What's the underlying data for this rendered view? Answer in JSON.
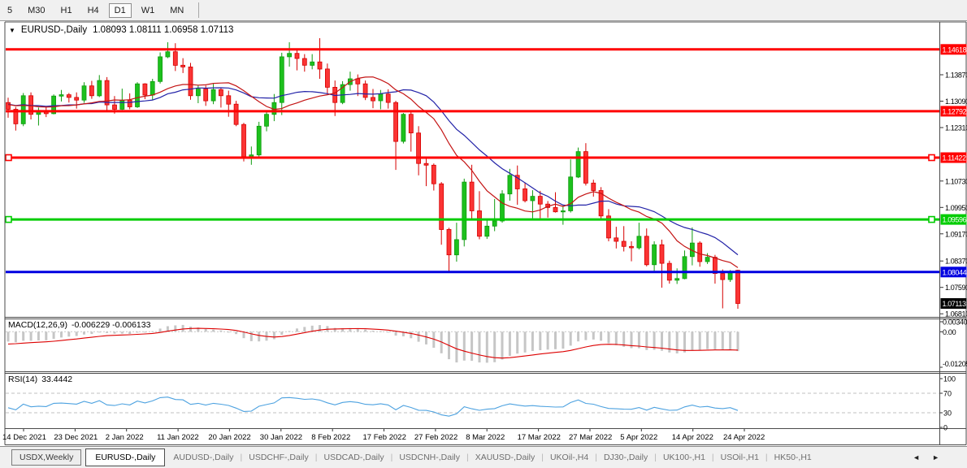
{
  "toolbar": {
    "items": [
      {
        "label": "5",
        "active": false
      },
      {
        "label": "M30",
        "active": false
      },
      {
        "label": "H1",
        "active": false
      },
      {
        "label": "H4",
        "active": false
      },
      {
        "label": "D1",
        "active": true
      },
      {
        "label": "W1",
        "active": false
      },
      {
        "label": "MN",
        "active": false
      }
    ]
  },
  "chart_header": {
    "collapse_icon": "▼",
    "symbol_label": "EURUSD-,Daily",
    "ohlc_values": "1.08093 1.08111 1.06958 1.07113"
  },
  "chart_data": {
    "type": "candlestick",
    "title": "EURUSD-,Daily",
    "x_labels": [
      "14 Dec 2021",
      "23 Dec 2021",
      "2 Jan 2022",
      "11 Jan 2022",
      "20 Jan 2022",
      "30 Jan 2022",
      "8 Feb 2022",
      "17 Feb 2022",
      "27 Feb 2022",
      "8 Mar 2022",
      "17 Mar 2022",
      "27 Mar 2022",
      "5 Apr 2022",
      "14 Apr 2022",
      "24 Apr 2022"
    ],
    "y_axis_labels": [
      1.1387,
      1.1309,
      1.1231,
      1.1073,
      1.0995,
      1.0917,
      1.0837,
      1.0759,
      1.0681
    ],
    "horizontal_lines": [
      {
        "price": 1.14618,
        "color": "#ff0000",
        "handles": false
      },
      {
        "price": 1.12792,
        "color": "#ff0000",
        "handles": false
      },
      {
        "price": 1.11422,
        "color": "#ff0000",
        "handles": true
      },
      {
        "price": 1.09596,
        "color": "#00cc00",
        "handles": true
      },
      {
        "price": 1.08044,
        "color": "#0000e0",
        "handles": false
      }
    ],
    "current_price": {
      "value": 1.07113,
      "badge_color": "#000000"
    },
    "moving_averages": [
      {
        "name": "fast",
        "period": 13,
        "color": "#c41414"
      },
      {
        "name": "slow",
        "period": 20,
        "color": "#2323a8"
      }
    ],
    "indicators": {
      "macd": {
        "name": "MACD(12,26,9)",
        "values": "-0.006229 -0.006133",
        "fast": 12,
        "slow": 26,
        "signal": 9,
        "axis_max": "0.003408",
        "axis_zero": "0.00",
        "axis_min": "-0.01205"
      },
      "rsi": {
        "name": "RSI(14)",
        "value": "33.4442",
        "period": 14,
        "levels": [
          70,
          30
        ],
        "axis_labels": [
          "100",
          "70",
          "30",
          "0"
        ]
      }
    },
    "ohlc": [
      [
        1.1305,
        1.1319,
        1.126,
        1.1285
      ],
      [
        1.1285,
        1.1292,
        1.1222,
        1.1242
      ],
      [
        1.1242,
        1.1333,
        1.1235,
        1.1325
      ],
      [
        1.1325,
        1.1335,
        1.1255,
        1.127
      ],
      [
        1.127,
        1.129,
        1.1237,
        1.128
      ],
      [
        1.128,
        1.1293,
        1.1262,
        1.1272
      ],
      [
        1.1272,
        1.1329,
        1.127,
        1.1324
      ],
      [
        1.1324,
        1.1342,
        1.1308,
        1.1328
      ],
      [
        1.1328,
        1.1333,
        1.1305,
        1.132
      ],
      [
        1.132,
        1.1335,
        1.1287,
        1.1312
      ],
      [
        1.1312,
        1.1365,
        1.1304,
        1.1354
      ],
      [
        1.1354,
        1.1369,
        1.1316,
        1.1325
      ],
      [
        1.1325,
        1.1386,
        1.1321,
        1.137
      ],
      [
        1.137,
        1.138,
        1.1279,
        1.1298
      ],
      [
        1.1298,
        1.1324,
        1.1272,
        1.1285
      ],
      [
        1.1285,
        1.1346,
        1.1283,
        1.1312
      ],
      [
        1.1312,
        1.1332,
        1.1285,
        1.1292
      ],
      [
        1.1292,
        1.1365,
        1.1289,
        1.136
      ],
      [
        1.136,
        1.1362,
        1.1315,
        1.1327
      ],
      [
        1.1327,
        1.1375,
        1.1313,
        1.1367
      ],
      [
        1.1367,
        1.1453,
        1.1361,
        1.144
      ],
      [
        1.144,
        1.1483,
        1.1436,
        1.1455
      ],
      [
        1.1455,
        1.148,
        1.1398,
        1.1415
      ],
      [
        1.1415,
        1.1436,
        1.1392,
        1.141
      ],
      [
        1.141,
        1.1422,
        1.1313,
        1.1325
      ],
      [
        1.1325,
        1.1357,
        1.1303,
        1.1345
      ],
      [
        1.1345,
        1.1355,
        1.1295,
        1.131
      ],
      [
        1.131,
        1.136,
        1.13,
        1.1343
      ],
      [
        1.1343,
        1.1348,
        1.129,
        1.1325
      ],
      [
        1.1325,
        1.134,
        1.1263,
        1.13
      ],
      [
        1.13,
        1.131,
        1.1235,
        1.124
      ],
      [
        1.124,
        1.1245,
        1.1131,
        1.1145
      ],
      [
        1.1145,
        1.1175,
        1.1121,
        1.115
      ],
      [
        1.115,
        1.1248,
        1.1141,
        1.1235
      ],
      [
        1.1235,
        1.128,
        1.122,
        1.127
      ],
      [
        1.127,
        1.133,
        1.125,
        1.1305
      ],
      [
        1.1305,
        1.1452,
        1.1268,
        1.144
      ],
      [
        1.144,
        1.1483,
        1.1411,
        1.145
      ],
      [
        1.145,
        1.1465,
        1.14,
        1.1435
      ],
      [
        1.1435,
        1.1448,
        1.1396,
        1.1415
      ],
      [
        1.1415,
        1.1448,
        1.1403,
        1.1425
      ],
      [
        1.1425,
        1.1495,
        1.1375,
        1.1404
      ],
      [
        1.1404,
        1.142,
        1.133,
        1.135
      ],
      [
        1.135,
        1.137,
        1.1265,
        1.1305
      ],
      [
        1.1305,
        1.1368,
        1.13,
        1.1358
      ],
      [
        1.1358,
        1.1396,
        1.134,
        1.1375
      ],
      [
        1.1375,
        1.1388,
        1.1324,
        1.136
      ],
      [
        1.136,
        1.137,
        1.1312,
        1.132
      ],
      [
        1.132,
        1.1345,
        1.1288,
        1.131
      ],
      [
        1.131,
        1.1342,
        1.1285,
        1.133
      ],
      [
        1.133,
        1.1344,
        1.1287,
        1.1305
      ],
      [
        1.1305,
        1.131,
        1.1106,
        1.119
      ],
      [
        1.119,
        1.1274,
        1.1184,
        1.127
      ],
      [
        1.127,
        1.1278,
        1.116,
        1.1215
      ],
      [
        1.1215,
        1.1235,
        1.109,
        1.1125
      ],
      [
        1.1125,
        1.1145,
        1.1058,
        1.112
      ],
      [
        1.112,
        1.1125,
        1.1045,
        1.1065
      ],
      [
        1.1065,
        1.107,
        1.0885,
        1.093
      ],
      [
        1.093,
        1.0935,
        1.0806,
        1.0855
      ],
      [
        1.0855,
        1.095,
        1.0835,
        1.09
      ],
      [
        1.09,
        1.108,
        1.088,
        1.107
      ],
      [
        1.107,
        1.1121,
        1.096,
        1.0985
      ],
      [
        1.0985,
        1.1043,
        1.0901,
        1.091
      ],
      [
        1.091,
        1.096,
        1.0902,
        1.094
      ],
      [
        1.094,
        1.102,
        1.0925,
        1.0955
      ],
      [
        1.0955,
        1.1046,
        1.095,
        1.1035
      ],
      [
        1.1035,
        1.1109,
        1.1015,
        1.109
      ],
      [
        1.109,
        1.1119,
        1.1003,
        1.105
      ],
      [
        1.105,
        1.1069,
        1.101,
        1.1015
      ],
      [
        1.1015,
        1.1046,
        1.0963,
        1.1028
      ],
      [
        1.1028,
        1.1044,
        1.0963,
        1.1005
      ],
      [
        1.1005,
        1.1014,
        1.0965,
        1.0995
      ],
      [
        1.0995,
        1.104,
        1.098,
        1.0982
      ],
      [
        1.0982,
        1.1,
        1.0944,
        1.0985
      ],
      [
        1.0985,
        1.1137,
        1.098,
        1.1085
      ],
      [
        1.1085,
        1.1172,
        1.1082,
        1.116
      ],
      [
        1.116,
        1.1185,
        1.106,
        1.1067
      ],
      [
        1.1067,
        1.1077,
        1.1027,
        1.1045
      ],
      [
        1.1045,
        1.1055,
        1.096,
        1.097
      ],
      [
        1.097,
        1.099,
        1.0895,
        1.0905
      ],
      [
        1.0905,
        1.0938,
        1.0874,
        1.0895
      ],
      [
        1.0895,
        1.094,
        1.0865,
        1.088
      ],
      [
        1.088,
        1.0895,
        1.0836,
        1.0876
      ],
      [
        1.0876,
        1.095,
        1.0871,
        1.091
      ],
      [
        1.091,
        1.0933,
        1.0821,
        1.0826
      ],
      [
        1.0826,
        1.0895,
        1.0808,
        1.0885
      ],
      [
        1.0885,
        1.09,
        1.0758,
        1.083
      ],
      [
        1.083,
        1.0838,
        1.077,
        1.078
      ],
      [
        1.078,
        1.0815,
        1.0769,
        1.0785
      ],
      [
        1.0785,
        1.0868,
        1.0783,
        1.085
      ],
      [
        1.085,
        1.0936,
        1.0824,
        1.089
      ],
      [
        1.089,
        1.0895,
        1.082,
        1.0835
      ],
      [
        1.0835,
        1.086,
        1.0828,
        1.0848
      ],
      [
        1.0848,
        1.0855,
        1.077,
        1.08
      ],
      [
        1.08,
        1.0812,
        1.0697,
        1.0782
      ],
      [
        1.0782,
        1.081,
        1.0775,
        1.0802
      ],
      [
        1.08093,
        1.08111,
        1.06958,
        1.07113
      ]
    ]
  },
  "tabs": {
    "items": [
      {
        "label": "USDX,Weekly",
        "state": "boxed"
      },
      {
        "label": "EURUSD-,Daily",
        "state": "active"
      },
      {
        "label": "AUDUSD-,Daily",
        "state": "normal"
      },
      {
        "label": "USDCHF-,Daily",
        "state": "normal"
      },
      {
        "label": "USDCAD-,Daily",
        "state": "normal"
      },
      {
        "label": "USDCNH-,Daily",
        "state": "normal"
      },
      {
        "label": "XAUUSD-,Daily",
        "state": "normal"
      },
      {
        "label": "UKOil-,H4",
        "state": "normal"
      },
      {
        "label": "DJ30-,Daily",
        "state": "normal"
      },
      {
        "label": "UK100-,H1",
        "state": "normal"
      },
      {
        "label": "USOil-,H1",
        "state": "normal"
      },
      {
        "label": "HK50-,H1",
        "state": "normal"
      }
    ],
    "scroll_left_icon": "◄",
    "scroll_right_icon": "►"
  }
}
